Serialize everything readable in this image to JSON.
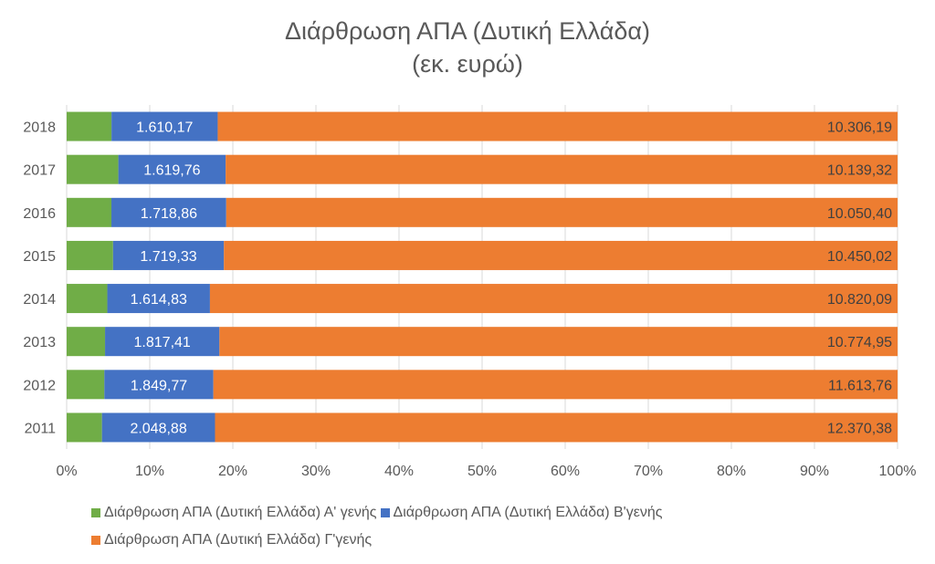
{
  "chart_data": {
    "type": "bar",
    "orientation": "horizontal",
    "stacked": "percent",
    "title": "Διάρθρωση ΑΠΑ (Δυτική Ελλάδα)",
    "subtitle": "(εκ. ευρώ)",
    "categories": [
      "2018",
      "2017",
      "2016",
      "2015",
      "2014",
      "2013",
      "2012",
      "2011"
    ],
    "series": [
      {
        "name": "Διάρθρωση ΑΠΑ (Δυτική Ελλάδα) Α' γενής",
        "color": "#70ad47",
        "values": [
          680,
          780,
          670,
          720,
          640,
          610,
          640,
          640
        ],
        "labels": [
          "",
          "",
          "",
          "",
          "",
          "",
          "",
          ""
        ]
      },
      {
        "name": "Διάρθρωση ΑΠΑ (Δυτική Ελλάδα) Β'γενής",
        "color": "#4472c4",
        "values": [
          1610.17,
          1619.76,
          1718.86,
          1719.33,
          1614.83,
          1817.41,
          1849.77,
          2048.88
        ],
        "labels": [
          "1.610,17",
          "1.619,76",
          "1.718,86",
          "1.719,33",
          "1.614,83",
          "1.817,41",
          "1.849,77",
          "2.048,88"
        ]
      },
      {
        "name": "Διάρθρωση ΑΠΑ (Δυτική Ελλάδα) Γ'γενής",
        "color": "#ed7d31",
        "values": [
          10306.19,
          10139.32,
          10050.4,
          10450.02,
          10820.09,
          10774.95,
          11613.76,
          12370.38
        ],
        "labels": [
          "10.306,19",
          "10.139,32",
          "10.050,40",
          "10.450,02",
          "10.820,09",
          "10.774,95",
          "11.613,76",
          "12.370,38"
        ]
      }
    ],
    "x_ticks": [
      "0%",
      "10%",
      "20%",
      "30%",
      "40%",
      "50%",
      "60%",
      "70%",
      "80%",
      "90%",
      "100%"
    ],
    "xlim": [
      0,
      100
    ],
    "grid": true,
    "legend_position": "bottom"
  }
}
